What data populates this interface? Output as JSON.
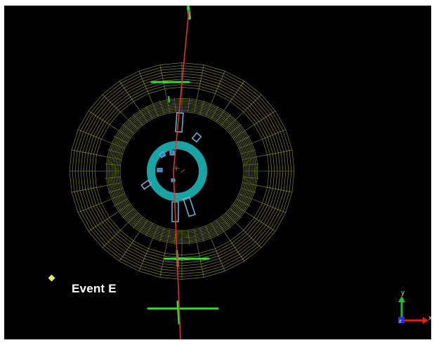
{
  "event": {
    "label": "Event E"
  },
  "axes": {
    "x": "x",
    "y": "y",
    "z": "z"
  },
  "colors": {
    "background": "#000000",
    "calorimeter": "#c8c84a",
    "calorimeter_inner": "#9aa53a",
    "tracker_ring": "#1aa3a3",
    "track": "#e03030",
    "muon_chamber": "#33dd33",
    "hit_box": "#7ab0d8",
    "x_axis": "#e02020",
    "y_axis": "#22c022",
    "z_axis": "#2233dd"
  },
  "icons": {
    "orientation": "xyz-axes-icon",
    "marker": "diamond-marker-icon"
  }
}
